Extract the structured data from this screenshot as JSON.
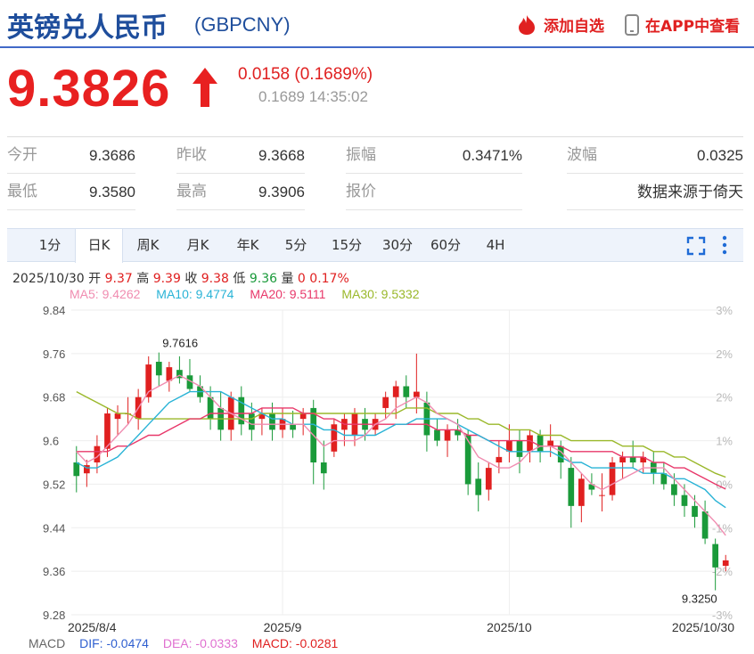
{
  "header": {
    "title": "英镑兑人民币",
    "code": "(GBPCNY)",
    "add_watchlist": "添加自选",
    "open_app": "在APP中查看"
  },
  "quote": {
    "price": "9.3826",
    "change": "0.0158 (0.1689%)",
    "subline": "0.1689 14:35:02"
  },
  "stats": {
    "open_label": "今开",
    "open": "9.3686",
    "prev_close_label": "昨收",
    "prev_close": "9.3668",
    "amplitude_label": "振幅",
    "amplitude": "0.3471%",
    "range_label": "波幅",
    "range": "0.0325",
    "low_label": "最低",
    "low": "9.3580",
    "high_label": "最高",
    "high": "9.3906",
    "quote_label": "报价",
    "source": "数据来源于倚天"
  },
  "tabs": [
    "1分",
    "日K",
    "周K",
    "月K",
    "年K",
    "5分",
    "15分",
    "30分",
    "60分",
    "4H"
  ],
  "active_tab": "日K",
  "bar_info": {
    "date": "2025/10/30",
    "open_label": "开",
    "open": "9.37",
    "high_label": "高",
    "high": "9.39",
    "close_label": "收",
    "close": "9.38",
    "low_label": "低",
    "low": "9.36",
    "volume_label": "量",
    "volume": "0",
    "pct": "0.17%"
  },
  "ma_info": {
    "ma5": "MA5: 9.4262",
    "ma10": "MA10: 9.4774",
    "ma20": "MA20: 9.5111",
    "ma30": "MA30: 9.5332"
  },
  "macd": {
    "label": "MACD",
    "dif": "DIF: -0.0474",
    "dea": "DEA: -0.0333",
    "macd": "MACD: -0.0281"
  },
  "colors": {
    "up": "#e02020",
    "down": "#1a9a3a",
    "ma5": "#f08cb0",
    "ma10": "#29b3d6",
    "ma20": "#e8386a",
    "ma30": "#9ab82a"
  },
  "chart_data": {
    "type": "candlestick",
    "ylim": [
      9.28,
      9.84
    ],
    "y_ticks": [
      "9.84",
      "9.76",
      "9.68",
      "9.6",
      "9.52",
      "9.44",
      "9.36",
      "9.28"
    ],
    "pct_ticks": [
      "3%",
      "2%",
      "2%",
      "1%",
      "0%",
      "-1%",
      "-2%",
      "-3%"
    ],
    "x_ticks": [
      {
        "label": "2025/8/4",
        "index": 0
      },
      {
        "label": "2025/9",
        "index": 20
      },
      {
        "label": "2025/10",
        "index": 42
      },
      {
        "label": "2025/10/30",
        "index": 63
      }
    ],
    "max_label": "9.7616",
    "min_label": "9.3250",
    "candles": [
      {
        "o": 9.56,
        "h": 9.59,
        "l": 9.505,
        "c": 9.535
      },
      {
        "o": 9.54,
        "h": 9.565,
        "l": 9.515,
        "c": 9.555
      },
      {
        "o": 9.56,
        "h": 9.61,
        "l": 9.54,
        "c": 9.59
      },
      {
        "o": 9.585,
        "h": 9.66,
        "l": 9.57,
        "c": 9.65
      },
      {
        "o": 9.64,
        "h": 9.665,
        "l": 9.61,
        "c": 9.65
      },
      {
        "o": 9.65,
        "h": 9.68,
        "l": 9.63,
        "c": 9.65
      },
      {
        "o": 9.64,
        "h": 9.695,
        "l": 9.62,
        "c": 9.68
      },
      {
        "o": 9.68,
        "h": 9.755,
        "l": 9.67,
        "c": 9.74
      },
      {
        "o": 9.745,
        "h": 9.762,
        "l": 9.7,
        "c": 9.72
      },
      {
        "o": 9.71,
        "h": 9.745,
        "l": 9.69,
        "c": 9.735
      },
      {
        "o": 9.73,
        "h": 9.755,
        "l": 9.705,
        "c": 9.715
      },
      {
        "o": 9.72,
        "h": 9.75,
        "l": 9.69,
        "c": 9.695
      },
      {
        "o": 9.7,
        "h": 9.72,
        "l": 9.67,
        "c": 9.68
      },
      {
        "o": 9.68,
        "h": 9.7,
        "l": 9.62,
        "c": 9.64
      },
      {
        "o": 9.66,
        "h": 9.69,
        "l": 9.6,
        "c": 9.62
      },
      {
        "o": 9.62,
        "h": 9.69,
        "l": 9.6,
        "c": 9.68
      },
      {
        "o": 9.68,
        "h": 9.7,
        "l": 9.61,
        "c": 9.63
      },
      {
        "o": 9.65,
        "h": 9.67,
        "l": 9.6,
        "c": 9.62
      },
      {
        "o": 9.64,
        "h": 9.66,
        "l": 9.61,
        "c": 9.65
      },
      {
        "o": 9.65,
        "h": 9.67,
        "l": 9.6,
        "c": 9.62
      },
      {
        "o": 9.62,
        "h": 9.66,
        "l": 9.605,
        "c": 9.64
      },
      {
        "o": 9.63,
        "h": 9.655,
        "l": 9.605,
        "c": 9.62
      },
      {
        "o": 9.64,
        "h": 9.66,
        "l": 9.61,
        "c": 9.65
      },
      {
        "o": 9.66,
        "h": 9.675,
        "l": 9.52,
        "c": 9.56
      },
      {
        "o": 9.56,
        "h": 9.6,
        "l": 9.51,
        "c": 9.54
      },
      {
        "o": 9.58,
        "h": 9.64,
        "l": 9.57,
        "c": 9.63
      },
      {
        "o": 9.62,
        "h": 9.65,
        "l": 9.59,
        "c": 9.64
      },
      {
        "o": 9.61,
        "h": 9.66,
        "l": 9.59,
        "c": 9.65
      },
      {
        "o": 9.64,
        "h": 9.66,
        "l": 9.6,
        "c": 9.62
      },
      {
        "o": 9.62,
        "h": 9.65,
        "l": 9.61,
        "c": 9.64
      },
      {
        "o": 9.66,
        "h": 9.69,
        "l": 9.64,
        "c": 9.68
      },
      {
        "o": 9.68,
        "h": 9.71,
        "l": 9.64,
        "c": 9.7
      },
      {
        "o": 9.7,
        "h": 9.72,
        "l": 9.66,
        "c": 9.68
      },
      {
        "o": 9.68,
        "h": 9.76,
        "l": 9.65,
        "c": 9.69
      },
      {
        "o": 9.67,
        "h": 9.69,
        "l": 9.58,
        "c": 9.61
      },
      {
        "o": 9.62,
        "h": 9.64,
        "l": 9.59,
        "c": 9.6
      },
      {
        "o": 9.6,
        "h": 9.63,
        "l": 9.57,
        "c": 9.62
      },
      {
        "o": 9.62,
        "h": 9.64,
        "l": 9.6,
        "c": 9.61
      },
      {
        "o": 9.61,
        "h": 9.62,
        "l": 9.5,
        "c": 9.52
      },
      {
        "o": 9.53,
        "h": 9.56,
        "l": 9.47,
        "c": 9.5
      },
      {
        "o": 9.51,
        "h": 9.56,
        "l": 9.49,
        "c": 9.55
      },
      {
        "o": 9.56,
        "h": 9.6,
        "l": 9.54,
        "c": 9.57
      },
      {
        "o": 9.58,
        "h": 9.63,
        "l": 9.56,
        "c": 9.6
      },
      {
        "o": 9.6,
        "h": 9.62,
        "l": 9.54,
        "c": 9.57
      },
      {
        "o": 9.58,
        "h": 9.62,
        "l": 9.56,
        "c": 9.61
      },
      {
        "o": 9.61,
        "h": 9.62,
        "l": 9.56,
        "c": 9.58
      },
      {
        "o": 9.59,
        "h": 9.63,
        "l": 9.57,
        "c": 9.6
      },
      {
        "o": 9.59,
        "h": 9.6,
        "l": 9.53,
        "c": 9.56
      },
      {
        "o": 9.55,
        "h": 9.57,
        "l": 9.44,
        "c": 9.48
      },
      {
        "o": 9.48,
        "h": 9.54,
        "l": 9.45,
        "c": 9.53
      },
      {
        "o": 9.52,
        "h": 9.54,
        "l": 9.5,
        "c": 9.51
      },
      {
        "o": 9.5,
        "h": 9.54,
        "l": 9.47,
        "c": 9.5
      },
      {
        "o": 9.5,
        "h": 9.57,
        "l": 9.49,
        "c": 9.56
      },
      {
        "o": 9.56,
        "h": 9.58,
        "l": 9.53,
        "c": 9.57
      },
      {
        "o": 9.57,
        "h": 9.6,
        "l": 9.55,
        "c": 9.56
      },
      {
        "o": 9.56,
        "h": 9.58,
        "l": 9.54,
        "c": 9.57
      },
      {
        "o": 9.56,
        "h": 9.58,
        "l": 9.52,
        "c": 9.54
      },
      {
        "o": 9.54,
        "h": 9.56,
        "l": 9.51,
        "c": 9.52
      },
      {
        "o": 9.52,
        "h": 9.54,
        "l": 9.48,
        "c": 9.5
      },
      {
        "o": 9.5,
        "h": 9.52,
        "l": 9.46,
        "c": 9.48
      },
      {
        "o": 9.48,
        "h": 9.5,
        "l": 9.44,
        "c": 9.46
      },
      {
        "o": 9.47,
        "h": 9.49,
        "l": 9.41,
        "c": 9.42
      },
      {
        "o": 9.41,
        "h": 9.42,
        "l": 9.325,
        "c": 9.367
      },
      {
        "o": 9.37,
        "h": 9.39,
        "l": 9.36,
        "c": 9.38
      }
    ],
    "ma5": [
      9.58,
      9.56,
      9.57,
      9.59,
      9.61,
      9.63,
      9.66,
      9.69,
      9.7,
      9.71,
      9.72,
      9.71,
      9.7,
      9.68,
      9.66,
      9.65,
      9.64,
      9.63,
      9.63,
      9.63,
      9.63,
      9.63,
      9.63,
      9.61,
      9.59,
      9.6,
      9.6,
      9.6,
      9.61,
      9.63,
      9.64,
      9.66,
      9.67,
      9.68,
      9.67,
      9.65,
      9.64,
      9.63,
      9.6,
      9.57,
      9.56,
      9.55,
      9.55,
      9.56,
      9.58,
      9.59,
      9.59,
      9.58,
      9.56,
      9.54,
      9.52,
      9.51,
      9.52,
      9.53,
      9.54,
      9.55,
      9.55,
      9.55,
      9.53,
      9.51,
      9.49,
      9.47,
      9.45,
      9.426
    ],
    "ma10": [
      9.56,
      9.55,
      9.55,
      9.56,
      9.57,
      9.59,
      9.61,
      9.63,
      9.65,
      9.67,
      9.68,
      9.69,
      9.69,
      9.69,
      9.69,
      9.68,
      9.67,
      9.66,
      9.65,
      9.64,
      9.64,
      9.63,
      9.63,
      9.63,
      9.62,
      9.62,
      9.61,
      9.61,
      9.61,
      9.61,
      9.62,
      9.63,
      9.63,
      9.64,
      9.64,
      9.64,
      9.64,
      9.63,
      9.62,
      9.61,
      9.6,
      9.59,
      9.58,
      9.58,
      9.58,
      9.58,
      9.58,
      9.57,
      9.56,
      9.56,
      9.55,
      9.55,
      9.55,
      9.55,
      9.55,
      9.54,
      9.54,
      9.54,
      9.53,
      9.53,
      9.52,
      9.51,
      9.49,
      9.477
    ],
    "ma20": [
      9.58,
      9.58,
      9.58,
      9.58,
      9.59,
      9.59,
      9.6,
      9.61,
      9.61,
      9.62,
      9.63,
      9.64,
      9.64,
      9.65,
      9.65,
      9.65,
      9.65,
      9.65,
      9.66,
      9.66,
      9.66,
      9.66,
      9.65,
      9.65,
      9.64,
      9.64,
      9.63,
      9.63,
      9.63,
      9.63,
      9.63,
      9.63,
      9.63,
      9.63,
      9.63,
      9.62,
      9.62,
      9.62,
      9.61,
      9.61,
      9.6,
      9.6,
      9.6,
      9.6,
      9.6,
      9.59,
      9.59,
      9.59,
      9.58,
      9.58,
      9.58,
      9.58,
      9.58,
      9.57,
      9.57,
      9.57,
      9.56,
      9.56,
      9.55,
      9.55,
      9.54,
      9.53,
      9.52,
      9.511
    ],
    "ma30": [
      9.69,
      9.68,
      9.67,
      9.66,
      9.65,
      9.65,
      9.64,
      9.64,
      9.64,
      9.64,
      9.64,
      9.64,
      9.64,
      9.64,
      9.64,
      9.64,
      9.64,
      9.64,
      9.65,
      9.65,
      9.65,
      9.65,
      9.65,
      9.65,
      9.65,
      9.65,
      9.65,
      9.65,
      9.65,
      9.65,
      9.65,
      9.65,
      9.66,
      9.66,
      9.66,
      9.65,
      9.65,
      9.65,
      9.64,
      9.64,
      9.63,
      9.63,
      9.62,
      9.62,
      9.62,
      9.61,
      9.61,
      9.61,
      9.6,
      9.6,
      9.6,
      9.6,
      9.6,
      9.59,
      9.59,
      9.59,
      9.58,
      9.58,
      9.57,
      9.57,
      9.56,
      9.55,
      9.54,
      9.533
    ]
  }
}
